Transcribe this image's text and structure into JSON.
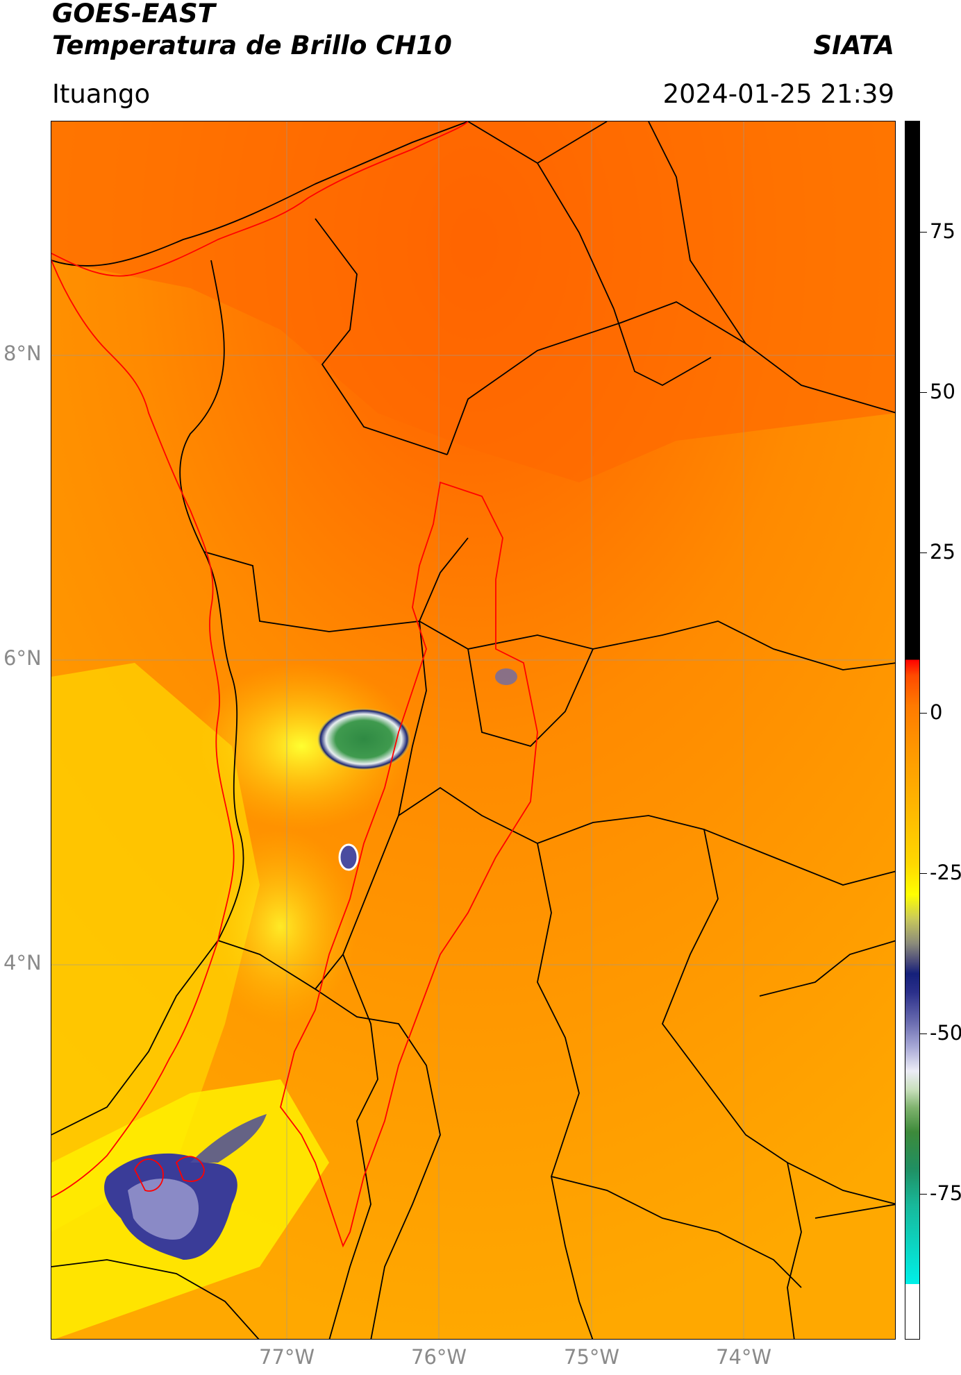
{
  "header": {
    "title_line1": "GOES-EAST",
    "title_line2": "Temperatura de Brillo CH10",
    "location": "Ituango",
    "source": "SIATA",
    "datetime": "2024-01-25 21:39"
  },
  "map": {
    "lon_labels": [
      "77°W",
      "76°W",
      "75°W",
      "74°W"
    ],
    "lat_labels": [
      "8°N",
      "6°N",
      "4°N"
    ],
    "background_color": "#ff8a00",
    "colors": {
      "boundary": "#000000",
      "watershed": "#ff0000",
      "grid": "#9a9a9a"
    }
  },
  "colorbar": {
    "tick_labels": [
      "75",
      "50",
      "25",
      "0",
      "-25",
      "-50",
      "-75"
    ],
    "range": [
      -96,
      92
    ]
  }
}
